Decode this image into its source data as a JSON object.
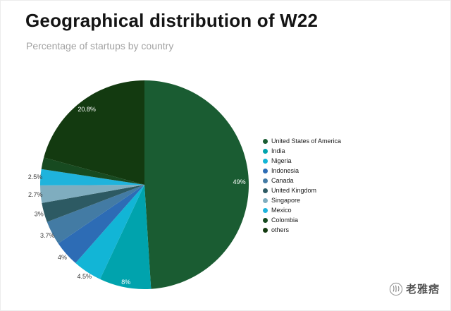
{
  "chart_data": {
    "type": "pie",
    "title": "Geographical distribution of W22",
    "subtitle": "Percentage of startups by country",
    "legend_position": "right",
    "start_angle": "12 o'clock",
    "direction": "clockwise",
    "slices": [
      {
        "label": "United States of America",
        "value": 49,
        "pct_label": "49%",
        "color": "#1a5c32"
      },
      {
        "label": "India",
        "value": 8,
        "pct_label": "8%",
        "color": "#00a3ad"
      },
      {
        "label": "Nigeria",
        "value": 4.5,
        "pct_label": "4.5%",
        "color": "#12b5d6"
      },
      {
        "label": "Indonesia",
        "value": 4,
        "pct_label": "4%",
        "color": "#2d6cb5"
      },
      {
        "label": "Canada",
        "value": 3.7,
        "pct_label": "3.7%",
        "color": "#437ba4"
      },
      {
        "label": "United Kingdom",
        "value": 3,
        "pct_label": "3%",
        "color": "#2d5a63"
      },
      {
        "label": "Singapore",
        "value": 2.7,
        "pct_label": "2.7%",
        "color": "#7fadbf"
      },
      {
        "label": "Mexico",
        "value": 2.5,
        "pct_label": "2.5%",
        "color": "#1fb3dc"
      },
      {
        "label": "Colombia",
        "value": 1.8,
        "pct_label": "",
        "color": "#174a20"
      },
      {
        "label": "others",
        "value": 20.8,
        "pct_label": "20.8%",
        "color": "#133a10"
      }
    ]
  },
  "watermark": {
    "text": "老雅痞"
  }
}
